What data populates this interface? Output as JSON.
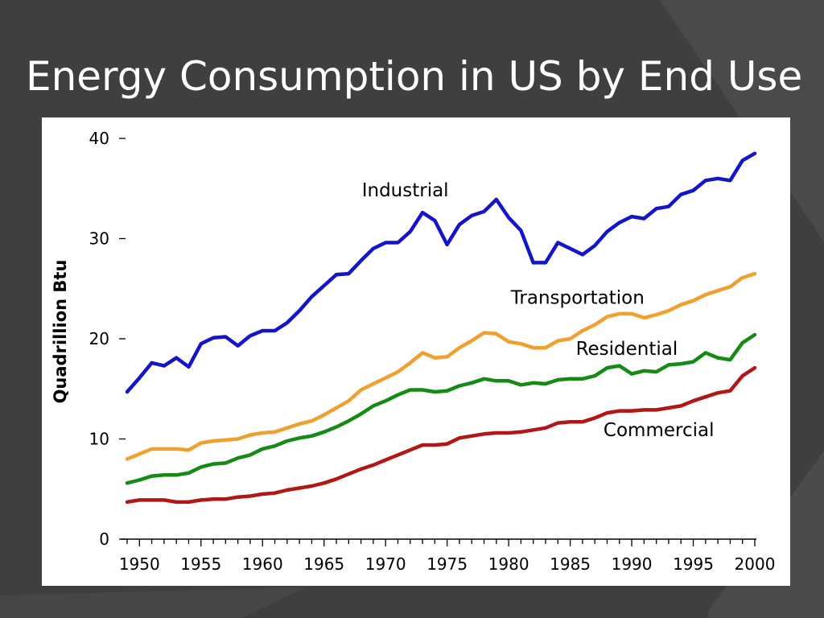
{
  "slide": {
    "title": "Energy Consumption in US by End Use"
  },
  "colors": {
    "background": "#3f3f3f",
    "panel": "#ffffff",
    "title": "#ffffff"
  },
  "chart_data": {
    "type": "line",
    "title": "",
    "xlabel": "",
    "ylabel": "Quadrillion Btu",
    "xlim": [
      1949,
      2000
    ],
    "ylim": [
      0,
      40
    ],
    "xticks": [
      1950,
      1955,
      1960,
      1965,
      1970,
      1975,
      1980,
      1985,
      1990,
      1995,
      2000
    ],
    "yticks": [
      0,
      10,
      20,
      30,
      40
    ],
    "grid": false,
    "legend": "inline labels",
    "x": [
      1949,
      1950,
      1951,
      1952,
      1953,
      1954,
      1955,
      1956,
      1957,
      1958,
      1959,
      1960,
      1961,
      1962,
      1963,
      1964,
      1965,
      1966,
      1967,
      1968,
      1969,
      1970,
      1971,
      1972,
      1973,
      1974,
      1975,
      1976,
      1977,
      1978,
      1979,
      1980,
      1981,
      1982,
      1983,
      1984,
      1985,
      1986,
      1987,
      1988,
      1989,
      1990,
      1991,
      1992,
      1993,
      1994,
      1995,
      1996,
      1997,
      1998,
      1999,
      2000
    ],
    "series": [
      {
        "name": "Industrial",
        "color": "#1414c8",
        "values": [
          14.7,
          16.1,
          17.6,
          17.3,
          18.1,
          17.2,
          19.5,
          20.1,
          20.2,
          19.3,
          20.3,
          20.8,
          20.8,
          21.6,
          22.8,
          24.2,
          25.3,
          26.4,
          26.5,
          27.8,
          29.0,
          29.6,
          29.6,
          30.7,
          32.6,
          31.8,
          29.4,
          31.4,
          32.3,
          32.7,
          33.9,
          32.1,
          30.8,
          27.6,
          27.6,
          29.6,
          29.0,
          28.4,
          29.3,
          30.7,
          31.6,
          32.2,
          32.0,
          33.0,
          33.2,
          34.4,
          34.8,
          35.8,
          36.0,
          35.8,
          37.8,
          38.5
        ]
      },
      {
        "name": "Transportation",
        "color": "#f0a030",
        "values": [
          8.0,
          8.5,
          9.0,
          9.0,
          9.0,
          8.9,
          9.6,
          9.8,
          9.9,
          10.0,
          10.4,
          10.6,
          10.7,
          11.1,
          11.5,
          11.8,
          12.4,
          13.1,
          13.8,
          14.9,
          15.5,
          16.1,
          16.7,
          17.6,
          18.6,
          18.1,
          18.2,
          19.1,
          19.8,
          20.6,
          20.5,
          19.7,
          19.5,
          19.1,
          19.1,
          19.8,
          20.0,
          20.8,
          21.4,
          22.2,
          22.5,
          22.5,
          22.1,
          22.4,
          22.8,
          23.4,
          23.8,
          24.4,
          24.8,
          25.2,
          26.1,
          26.5
        ]
      },
      {
        "name": "Residential",
        "color": "#158a15",
        "values": [
          5.6,
          5.9,
          6.3,
          6.4,
          6.4,
          6.6,
          7.2,
          7.5,
          7.6,
          8.1,
          8.4,
          9.0,
          9.3,
          9.8,
          10.1,
          10.3,
          10.7,
          11.2,
          11.8,
          12.5,
          13.3,
          13.8,
          14.4,
          14.9,
          14.9,
          14.7,
          14.8,
          15.3,
          15.6,
          16.0,
          15.8,
          15.8,
          15.4,
          15.6,
          15.5,
          15.9,
          16.0,
          16.0,
          16.3,
          17.1,
          17.3,
          16.5,
          16.8,
          16.7,
          17.4,
          17.5,
          17.7,
          18.6,
          18.1,
          17.9,
          19.6,
          20.4
        ]
      },
      {
        "name": "Commercial",
        "color": "#b01818",
        "values": [
          3.7,
          3.9,
          3.9,
          3.9,
          3.7,
          3.7,
          3.9,
          4.0,
          4.0,
          4.2,
          4.3,
          4.5,
          4.6,
          4.9,
          5.1,
          5.3,
          5.6,
          6.0,
          6.5,
          7.0,
          7.4,
          7.9,
          8.4,
          8.9,
          9.4,
          9.4,
          9.5,
          10.1,
          10.3,
          10.5,
          10.6,
          10.6,
          10.7,
          10.9,
          11.1,
          11.6,
          11.7,
          11.7,
          12.1,
          12.6,
          12.8,
          12.8,
          12.9,
          12.9,
          13.1,
          13.3,
          13.8,
          14.2,
          14.6,
          14.8,
          16.3,
          17.1
        ]
      }
    ]
  }
}
